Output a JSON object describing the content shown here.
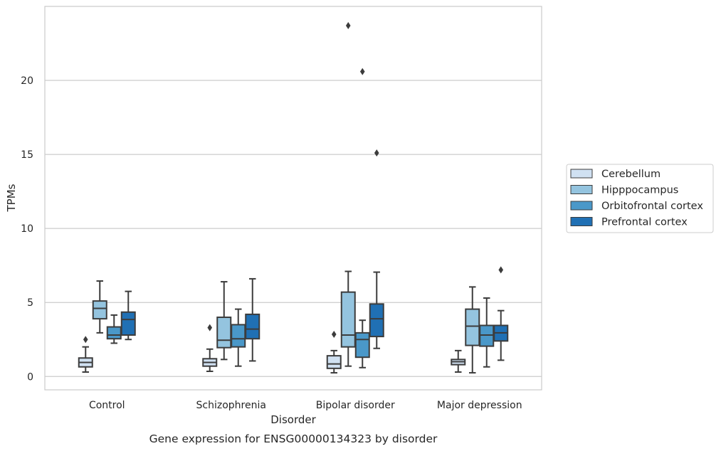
{
  "chart_data": {
    "type": "box",
    "caption": "Gene expression for ENSG00000134323 by disorder",
    "xlabel": "Disorder",
    "ylabel": "TPMs",
    "ylim": [
      -0.9,
      25.0
    ],
    "yticks": [
      0,
      5,
      10,
      15,
      20
    ],
    "grid": true,
    "legend_position": "right",
    "categories": [
      "Control",
      "Schizophrenia",
      "Bipolar disorder",
      "Major depression"
    ],
    "series": [
      {
        "name": "Cerebellum",
        "color": "#d0e1f2",
        "boxes": [
          {
            "whislo": 0.3,
            "q1": 0.65,
            "med": 0.95,
            "q3": 1.25,
            "whishi": 2.0,
            "fliers": [
              2.5
            ]
          },
          {
            "whislo": 0.35,
            "q1": 0.7,
            "med": 0.95,
            "q3": 1.2,
            "whishi": 1.85,
            "fliers": [
              3.3
            ]
          },
          {
            "whislo": 0.25,
            "q1": 0.55,
            "med": 0.85,
            "q3": 1.4,
            "whishi": 1.75,
            "fliers": [
              2.85
            ]
          },
          {
            "whislo": 0.3,
            "q1": 0.8,
            "med": 1.0,
            "q3": 1.15,
            "whishi": 1.75,
            "fliers": []
          }
        ]
      },
      {
        "name": "Hipppocampus",
        "color": "#94c4df",
        "boxes": [
          {
            "whislo": 2.95,
            "q1": 3.9,
            "med": 4.6,
            "q3": 5.1,
            "whishi": 6.45,
            "fliers": []
          },
          {
            "whislo": 1.15,
            "q1": 1.95,
            "med": 2.45,
            "q3": 4.0,
            "whishi": 6.4,
            "fliers": []
          },
          {
            "whislo": 0.7,
            "q1": 2.0,
            "med": 2.8,
            "q3": 5.7,
            "whishi": 7.1,
            "fliers": [
              23.7
            ]
          },
          {
            "whislo": 0.25,
            "q1": 2.1,
            "med": 3.4,
            "q3": 4.55,
            "whishi": 6.05,
            "fliers": []
          }
        ]
      },
      {
        "name": "Orbitofrontal cortex",
        "color": "#4a98c9",
        "boxes": [
          {
            "whislo": 2.25,
            "q1": 2.55,
            "med": 2.8,
            "q3": 3.35,
            "whishi": 4.15,
            "fliers": []
          },
          {
            "whislo": 0.7,
            "q1": 2.0,
            "med": 2.55,
            "q3": 3.5,
            "whishi": 4.55,
            "fliers": []
          },
          {
            "whislo": 0.6,
            "q1": 1.3,
            "med": 2.5,
            "q3": 2.95,
            "whishi": 3.8,
            "fliers": [
              20.6
            ]
          },
          {
            "whislo": 0.65,
            "q1": 2.05,
            "med": 2.8,
            "q3": 3.45,
            "whishi": 5.3,
            "fliers": []
          }
        ]
      },
      {
        "name": "Prefrontal cortex",
        "color": "#2070b4",
        "boxes": [
          {
            "whislo": 2.5,
            "q1": 2.8,
            "med": 3.85,
            "q3": 4.35,
            "whishi": 5.75,
            "fliers": []
          },
          {
            "whislo": 1.05,
            "q1": 2.55,
            "med": 3.2,
            "q3": 4.2,
            "whishi": 6.6,
            "fliers": []
          },
          {
            "whislo": 1.9,
            "q1": 2.7,
            "med": 3.9,
            "q3": 4.9,
            "whishi": 7.05,
            "fliers": [
              15.1
            ]
          },
          {
            "whislo": 1.1,
            "q1": 2.4,
            "med": 2.95,
            "q3": 3.45,
            "whishi": 4.45,
            "fliers": [
              7.2
            ]
          }
        ]
      }
    ]
  }
}
